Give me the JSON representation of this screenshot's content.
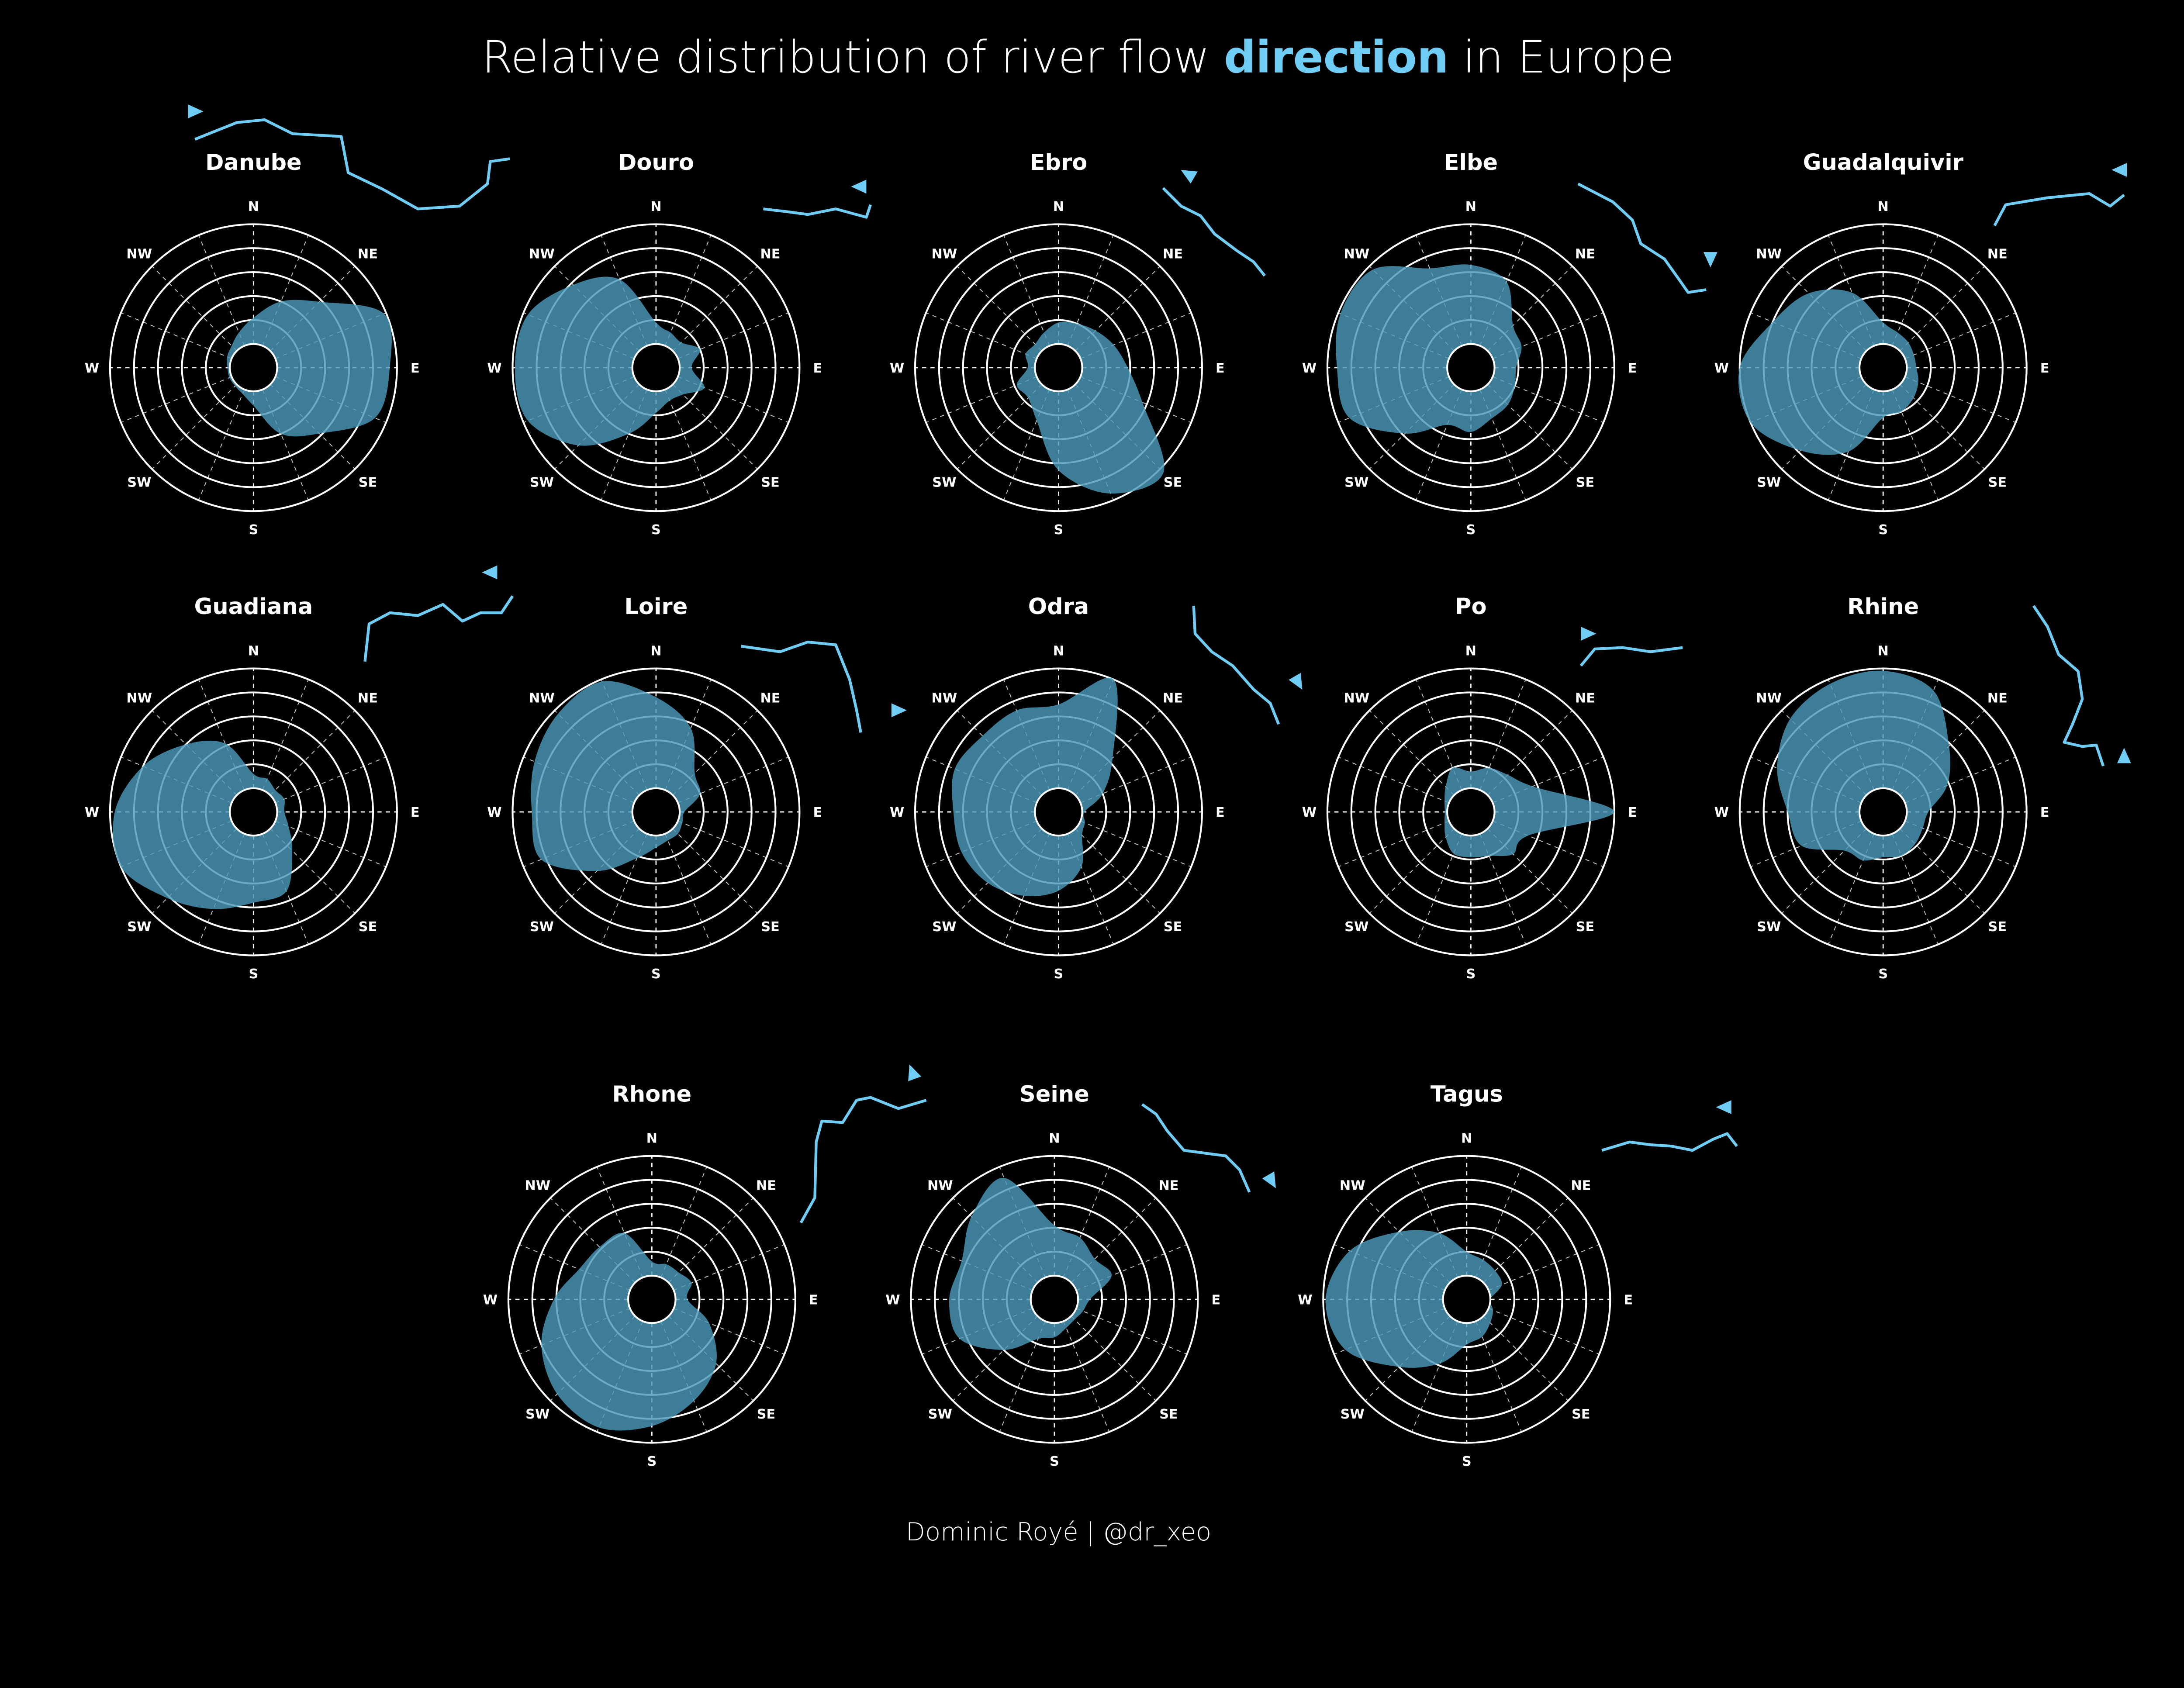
{
  "title": {
    "prefix": "Relative distribution of river flow ",
    "highlight": "direction",
    "suffix": " in Europe"
  },
  "credit": "Dominic Royé | @dr_xeo",
  "colors": {
    "background": "#000000",
    "highlight": "#6fcdf5",
    "area_fill": "#4b98ba",
    "river_line": "#6fcdf5",
    "grid": "#ffffff"
  },
  "chart_data": {
    "type": "polar-area",
    "directions": [
      "N",
      "NNE",
      "NE",
      "ENE",
      "E",
      "ESE",
      "SE",
      "SSE",
      "S",
      "SSW",
      "SW",
      "WSW",
      "W",
      "WNW",
      "NW",
      "NNW"
    ],
    "compass_labels": [
      "N",
      "NE",
      "E",
      "SE",
      "S",
      "SW",
      "W",
      "NW"
    ],
    "rings": 5,
    "grid": true,
    "value_scale": "relative share, 0 = inner hole, 5 = outer ring (no ticks printed)",
    "series": [
      {
        "name": "Danube",
        "flow_arrow": "east",
        "values": [
          1.1,
          2.0,
          2.9,
          4.9,
          4.7,
          4.5,
          2.9,
          2.0,
          0.6,
          0.2,
          0.1,
          0.1,
          0.1,
          0.2,
          0.3,
          0.6
        ]
      },
      {
        "name": "Douro",
        "flow_arrow": "west",
        "values": [
          0.9,
          0.6,
          0.5,
          1.0,
          0.5,
          1.2,
          0.6,
          0.5,
          0.9,
          2.0,
          3.6,
          4.8,
          4.9,
          4.8,
          3.9,
          3.0
        ]
      },
      {
        "name": "Ebro",
        "flow_arrow": "northwest",
        "values": [
          0.9,
          1.0,
          1.2,
          1.5,
          1.9,
          2.8,
          5.2,
          4.7,
          3.3,
          1.4,
          0.8,
          0.9,
          0.3,
          0.5,
          0.4,
          0.6
        ]
      },
      {
        "name": "Elbe",
        "flow_arrow": "south",
        "values": [
          3.3,
          2.9,
          1.5,
          1.3,
          0.9,
          1.0,
          1.2,
          1.3,
          1.7,
          1.6,
          2.9,
          4.5,
          4.6,
          4.9,
          4.8,
          3.5
        ]
      },
      {
        "name": "Guadalquivir",
        "flow_arrow": "west",
        "values": [
          0.9,
          0.6,
          0.5,
          0.4,
          0.4,
          0.6,
          0.8,
          1.0,
          1.1,
          2.8,
          3.9,
          5.0,
          5.0,
          4.0,
          3.4,
          2.4
        ]
      },
      {
        "name": "Guadiana",
        "flow_arrow": "west",
        "values": [
          0.6,
          0.5,
          0.3,
          0.4,
          0.3,
          0.6,
          1.3,
          2.6,
          2.8,
          3.4,
          4.1,
          5.0,
          4.8,
          4.0,
          3.0,
          2.1
        ]
      },
      {
        "name": "Loire",
        "flow_arrow": "east",
        "values": [
          3.8,
          2.8,
          1.3,
          1.0,
          0.2,
          0.2,
          0.3,
          0.3,
          0.5,
          1.1,
          2.5,
          4.2,
          4.2,
          4.5,
          4.8,
          4.9
        ]
      },
      {
        "name": "Odra",
        "flow_arrow": "southeast",
        "values": [
          3.5,
          5.0,
          2.2,
          1.0,
          0.1,
          0.2,
          0.4,
          1.5,
          2.3,
          2.8,
          3.2,
          3.4,
          3.4,
          3.7,
          3.5,
          3.6
        ]
      },
      {
        "name": "Po",
        "flow_arrow": "east",
        "values": [
          0.7,
          1.0,
          1.2,
          1.8,
          5.0,
          1.6,
          1.5,
          1.0,
          0.9,
          0.9,
          0.5,
          0.2,
          0.1,
          0.2,
          0.5,
          1.0
        ]
      },
      {
        "name": "Rhine",
        "flow_arrow": "north",
        "values": [
          4.9,
          4.5,
          2.9,
          1.9,
          0.9,
          0.8,
          0.9,
          1.0,
          0.9,
          1.2,
          1.3,
          2.7,
          3.0,
          3.8,
          4.5,
          4.8
        ]
      },
      {
        "name": "Rhone",
        "flow_arrow": "north",
        "values": [
          0.6,
          0.6,
          0.6,
          0.8,
          0.5,
          1.6,
          2.8,
          3.6,
          4.3,
          4.8,
          4.6,
          4.0,
          3.1,
          2.3,
          2.1,
          2.0
        ]
      },
      {
        "name": "Seine",
        "flow_arrow": "southeast",
        "values": [
          2.1,
          1.8,
          1.4,
          1.6,
          0.5,
          0.3,
          0.2,
          0.3,
          0.6,
          0.8,
          2.0,
          3.3,
          3.4,
          3.2,
          3.9,
          4.5
        ]
      },
      {
        "name": "Tagus",
        "flow_arrow": "west",
        "values": [
          1.0,
          0.8,
          0.7,
          0.6,
          0.0,
          0.2,
          0.4,
          0.7,
          0.9,
          1.9,
          3.0,
          4.5,
          4.9,
          4.3,
          3.0,
          2.0
        ]
      }
    ]
  }
}
